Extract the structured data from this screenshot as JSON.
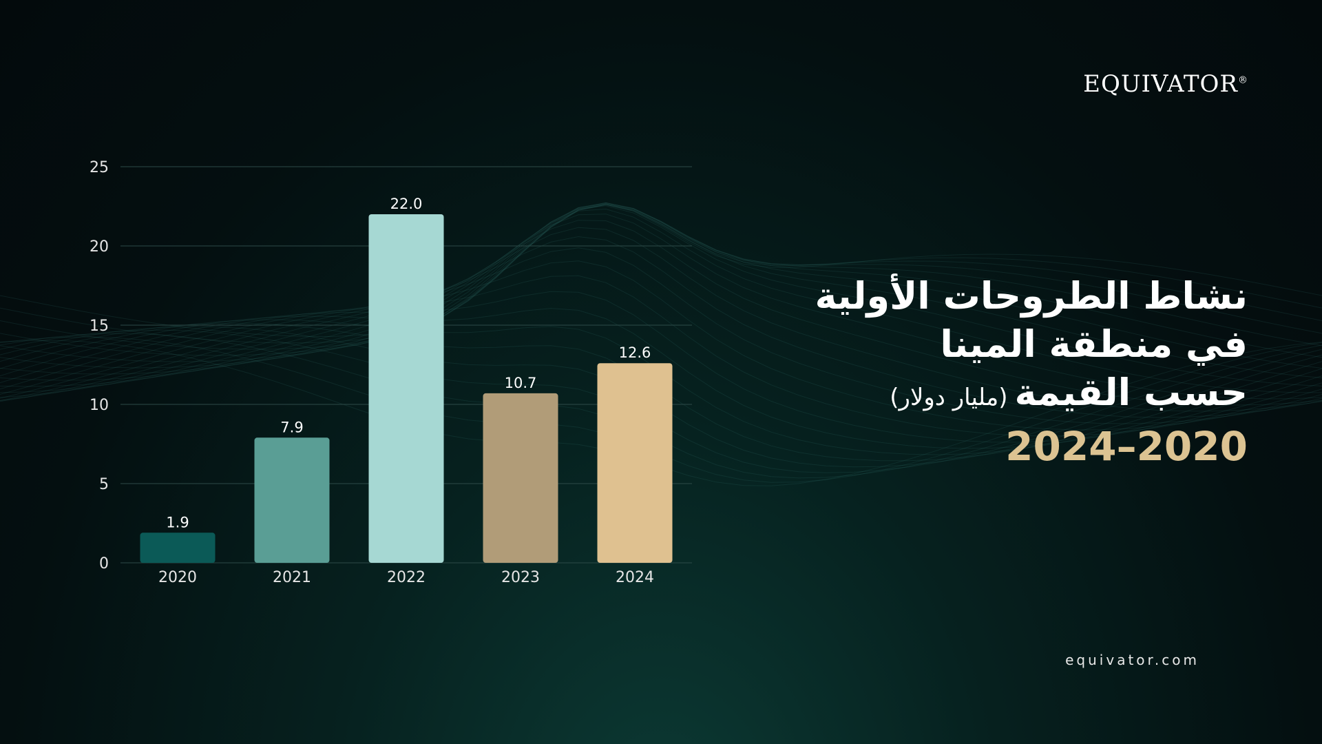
{
  "brand": {
    "logo_text": "EQUIVATOR",
    "registered_mark": "®"
  },
  "title": {
    "line1": "نشاط الطروحات الأولية",
    "line2": "في منطقة المينا",
    "line3": "حسب القيمة",
    "unit": "(مليار دولار)",
    "years": "2024–2020"
  },
  "website": "equivator.com",
  "chart_data": {
    "type": "bar",
    "categories": [
      "2020",
      "2021",
      "2022",
      "2023",
      "2024"
    ],
    "values": [
      1.9,
      7.9,
      22.0,
      10.7,
      12.6
    ],
    "value_labels": [
      "1.9",
      "7.9",
      "22.0",
      "10.7",
      "12.6"
    ],
    "bar_colors": [
      "#0b5a57",
      "#5a9e95",
      "#a6d8d3",
      "#b19c78",
      "#dfc190"
    ],
    "ylim": [
      0,
      25
    ],
    "yticks": [
      "0",
      "5",
      "10",
      "15",
      "20",
      "25"
    ],
    "grid": true,
    "title": "",
    "xlabel": "",
    "ylabel": ""
  }
}
